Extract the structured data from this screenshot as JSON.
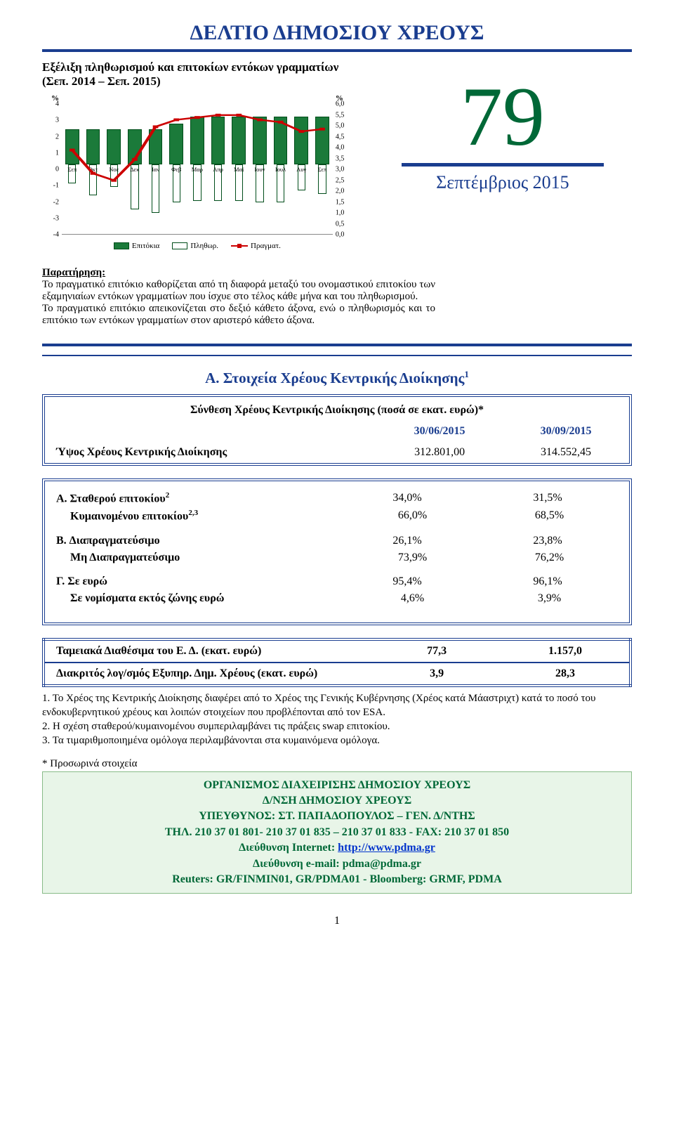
{
  "title": "ΔΕΛΤΙΟ ΔΗΜΟΣΙΟΥ ΧΡΕΟΥΣ",
  "chart": {
    "heading": "Εξέλιξη πληθωρισμού και επιτοκίων εντόκων γραμματίων (Σεπ. 2014 – Σεπ. 2015)",
    "left_unit": "%",
    "right_unit": "%",
    "categories": [
      "Σεπ",
      "Οκτ",
      "Νοε",
      "Δεκ",
      "Ιαν",
      "Φεβ",
      "Μαρ",
      "Απρ",
      "Μαϊ",
      "Ιουν",
      "Ιουλ",
      "Αυγ",
      "Σεπ"
    ],
    "bars_interest": [
      2.0,
      2.0,
      2.0,
      2.0,
      2.0,
      2.3,
      2.7,
      2.7,
      2.7,
      2.7,
      2.7,
      2.7,
      2.7
    ],
    "bars_infl": [
      -1.1,
      -1.8,
      -1.3,
      -2.6,
      -2.8,
      -2.2,
      -2.1,
      -2.1,
      -2.1,
      -2.2,
      -2.2,
      -1.5,
      -1.7
    ],
    "line_real": [
      3.6,
      2.6,
      2.3,
      3.2,
      4.6,
      4.9,
      5.0,
      5.1,
      5.1,
      4.9,
      4.8,
      4.4,
      4.5
    ],
    "left_min": -4,
    "left_max": 4,
    "right_min": 0.0,
    "right_max": 6.0,
    "left_ticks": [
      "4",
      "3",
      "2",
      "1",
      "0",
      "-1",
      "-2",
      "-3",
      "-4"
    ],
    "right_ticks": [
      "6,0",
      "5,5",
      "5,0",
      "4,5",
      "4,0",
      "3,5",
      "3,0",
      "2,5",
      "2,0",
      "1,5",
      "1,0",
      "0,5",
      "0,0"
    ],
    "colors": {
      "bar_interest": "#1b7a3a",
      "bar_infl": "#ffffff",
      "bar_border": "#004d1a",
      "line": "#cc0000"
    },
    "legend": {
      "interest": "Επιτόκια",
      "infl": "Πληθωρ.",
      "real": "Πραγματ."
    }
  },
  "issue": {
    "number": "79",
    "month": "Σεπτέμβριος 2015"
  },
  "note": {
    "label": "Παρατήρηση:",
    "p1": "Το πραγματικό επιτόκιο καθορίζεται από τη διαφορά μεταξύ του ονομαστικού επιτοκίου των εξαμηνιαίων εντόκων γραμματίων που ίσχυε στο τέλος κάθε μήνα και του πληθωρισμού.",
    "p2": "Το πραγματικό επιτόκιο απεικονίζεται στο δεξιό κάθετο άξονα, ενώ ο πληθωρισμός και το επιτόκιο των εντόκων γραμματίων στον αριστερό κάθετο άξονα."
  },
  "section_a": {
    "title": "Α. Στοιχεία Χρέους Κεντρικής Διοίκησης",
    "title_sup": "1",
    "table_title": "Σύνθεση Χρέους Κεντρικής Διοίκησης (ποσά σε εκατ. ευρώ)*",
    "dates": {
      "d1": "30/06/2015",
      "d2": "30/09/2015"
    },
    "total_row": {
      "label": "Ύψος Χρέους Κεντρικής Διοίκησης",
      "v1": "312.801,00",
      "v2": "314.552,45"
    },
    "composition": [
      {
        "group": [
          {
            "label": "Α. Σταθερού επιτοκίου",
            "sup": "2",
            "v1": "34,0%",
            "v2": "31,5%",
            "bold": true
          },
          {
            "label": "Κυμαινομένου επιτοκίου",
            "sup": "2,3",
            "v1": "66,0%",
            "v2": "68,5%",
            "sub": true,
            "bold": true
          }
        ]
      },
      {
        "group": [
          {
            "label": "B. Διαπραγματεύσιμο",
            "v1": "26,1%",
            "v2": "23,8%",
            "bold": true
          },
          {
            "label": "Μη Διαπραγματεύσιμο",
            "v1": "73,9%",
            "v2": "76,2%",
            "sub": true,
            "bold": true
          }
        ]
      },
      {
        "group": [
          {
            "label": "Γ. Σε ευρώ",
            "v1": "95,4%",
            "v2": "96,1%",
            "bold": true
          },
          {
            "label": "Σε νομίσματα εκτός ζώνης ευρώ",
            "v1": "4,6%",
            "v2": "3,9%",
            "sub": true,
            "bold": true
          }
        ]
      }
    ]
  },
  "table2": {
    "rows": [
      {
        "label": "Ταμειακά Διαθέσιμα του Ε. Δ. (εκατ. ευρώ)",
        "v1": "77,3",
        "v2": "1.157,0"
      },
      {
        "label": "Διακριτός λογ/σμός Εξυπηρ. Δημ. Χρέους (εκατ. ευρώ)",
        "v1": "3,9",
        "v2": "28,3"
      }
    ]
  },
  "footnotes": [
    "1. Το Χρέος της Κεντρικής Διοίκησης διαφέρει από το Χρέος της Γενικής Κυβέρνησης (Χρέος κατά Μάαστριχτ) κατά το ποσό του ενδοκυβερνητικού χρέους και λοιπών στοιχείων που προβλέπονται από τον ESA.",
    "2. Η σχέση σταθερού/κυμαινομένου συμπεριλαμβάνει τις πράξεις swap επιτοκίου.",
    "3. Τα τιμαριθμοποιημένα ομόλογα περιλαμβάνονται στα κυμαινόμενα ομόλογα."
  ],
  "provisional": "* Προσωρινά στοιχεία",
  "org": {
    "l1": "ΟΡΓΑΝΙΣΜΟΣ ΔΙΑΧΕΙΡΙΣΗΣ ΔΗΜΟΣΙΟΥ ΧΡΕΟΥΣ",
    "l2": "Δ/ΝΣΗ ΔΗΜΟΣΙΟΥ ΧΡΕΟΥΣ",
    "l3": "ΥΠΕΥΘΥΝΟΣ: ΣΤ. ΠΑΠΑΔΟΠΟΥΛΟΣ – ΓΕΝ. Δ/ΝΤΗΣ",
    "l4": "ΤΗΛ. 210 37 01 801- 210 37 01 835 – 210 37 01 833 - FAX: 210 37 01 850",
    "l5a": "Διεύθυνση Internet: ",
    "l5b": "http://www.pdma.gr",
    "l6": "Διεύθυνση e-mail: pdma@pdma.gr",
    "l7": "Reuters: GR/FINMIN01, GR/PDMA01 - Bloomberg: GRMF, PDMA"
  },
  "page_number": "1"
}
